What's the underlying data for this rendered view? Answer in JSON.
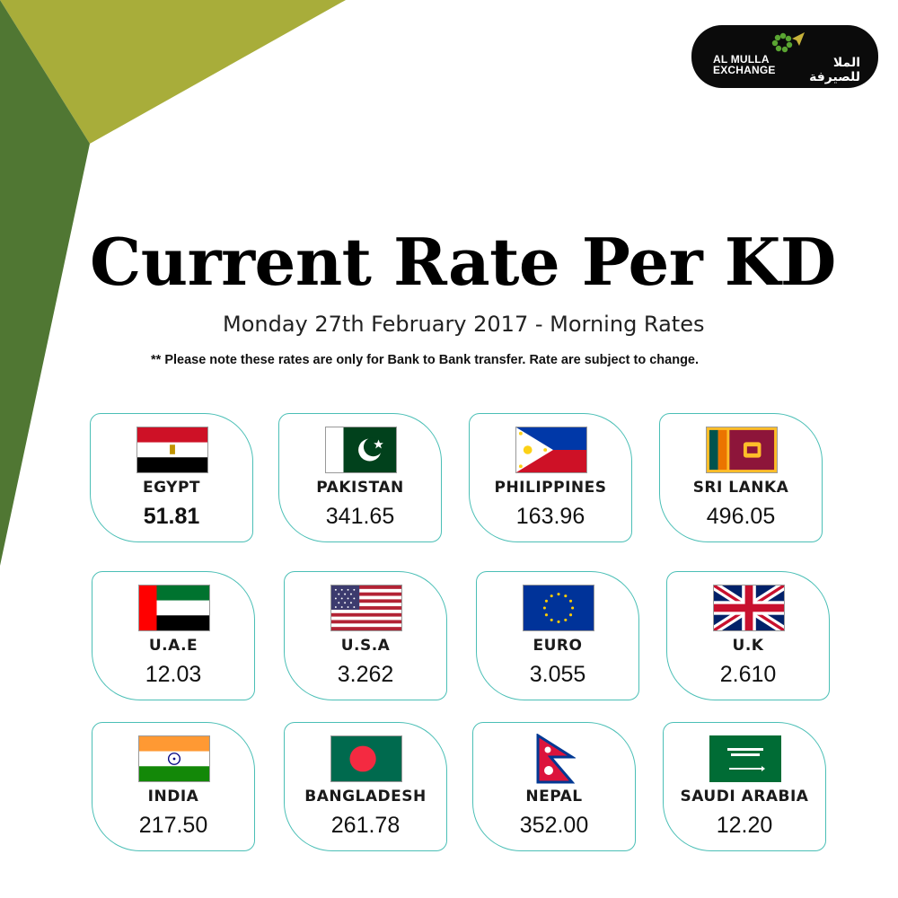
{
  "brand": {
    "name_en_line1": "AL MULLA",
    "name_en_line2": "EXCHANGE",
    "name_ar_line1": "الملا",
    "name_ar_line2": "للصيرفة"
  },
  "colors": {
    "accent_olive": "#a8ad3a",
    "accent_green": "#507733",
    "card_border": "#4bbfb6"
  },
  "header": {
    "title": "Current Rate Per KD",
    "subtitle": "Monday 27th February 2017 - Morning Rates",
    "note": "** Please note these rates are only for Bank to Bank transfer. Rate are subject to change."
  },
  "rates": [
    {
      "country": "EGYPT",
      "rate": "51.81",
      "flag": "egypt-flag"
    },
    {
      "country": "PAKISTAN",
      "rate": "341.65",
      "flag": "pakistan-flag"
    },
    {
      "country": "PHILIPPINES",
      "rate": "163.96",
      "flag": "philippines-flag"
    },
    {
      "country": "SRI LANKA",
      "rate": "496.05",
      "flag": "sri-lanka-flag"
    },
    {
      "country": "U.A.E",
      "rate": "12.03",
      "flag": "uae-flag"
    },
    {
      "country": "U.S.A",
      "rate": "3.262",
      "flag": "usa-flag"
    },
    {
      "country": "EURO",
      "rate": "3.055",
      "flag": "eu-flag"
    },
    {
      "country": "U.K",
      "rate": "2.610",
      "flag": "uk-flag"
    },
    {
      "country": "INDIA",
      "rate": "217.50",
      "flag": "india-flag"
    },
    {
      "country": "BANGLADESH",
      "rate": "261.78",
      "flag": "bangladesh-flag"
    },
    {
      "country": "NEPAL",
      "rate": "352.00",
      "flag": "nepal-flag"
    },
    {
      "country": "SAUDI ARABIA",
      "rate": "12.20",
      "flag": "saudi-arabia-flag"
    }
  ]
}
